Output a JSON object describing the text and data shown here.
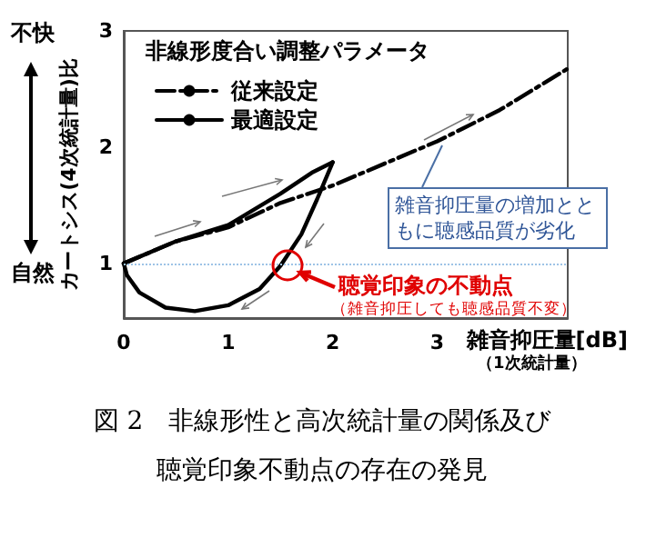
{
  "chart_data": {
    "type": "line",
    "legend_title": "非線形度合い調整パラメータ",
    "ylabel": "カートシス(4次統計量)比",
    "xlabel": "雑音抑圧量[dB]",
    "xlim": [
      0,
      4.25
    ],
    "xticks": [
      0,
      1,
      2,
      3
    ],
    "ylim": [
      0.53,
      3
    ],
    "yticks": [
      1,
      2,
      3
    ],
    "legend": "top left",
    "series": [
      {
        "name": "従来設定",
        "color": "#000000",
        "line_style": "dashdot",
        "x": [
          0,
          0.5,
          1,
          1.5,
          2,
          3,
          3.6,
          4.24
        ],
        "values": [
          1,
          1.19,
          1.31,
          1.52,
          1.67,
          2.05,
          2.32,
          2.67
        ]
      },
      {
        "name": "最適設定",
        "color": "#000000",
        "line_style": "solid",
        "x": [
          0,
          0.5,
          1,
          1.5,
          1.8,
          2
        ],
        "values": [
          1,
          1.19,
          1.33,
          1.6,
          1.78,
          1.87
        ]
      },
      {
        "color": "#000000",
        "line_style": "solid",
        "x": [
          2,
          1.85,
          1.7,
          1.5,
          1.3,
          1,
          0.68,
          0.4,
          0.15,
          0.03,
          0
        ],
        "values": [
          1.87,
          1.55,
          1.25,
          0.98,
          0.78,
          0.64,
          0.59,
          0.62,
          0.75,
          0.9,
          1
        ]
      }
    ],
    "ref_lines": [
      {
        "axis": "y",
        "value": 1,
        "color": "#9dc3e6",
        "line_style": "dotted"
      }
    ],
    "annotations": [
      "不快",
      "自然",
      "（1次統計量）",
      "雑音抑圧量の増加とともに聴感品質が劣化",
      {
        "text": "聴覚印象の不動点",
        "x": 1.5,
        "y": 1
      },
      "（雑音抑圧しても聴感品質不変）",
      "図 2　非線形性と高次統計量の関係及び",
      "聴覚印象不動点の存在の発見"
    ]
  }
}
